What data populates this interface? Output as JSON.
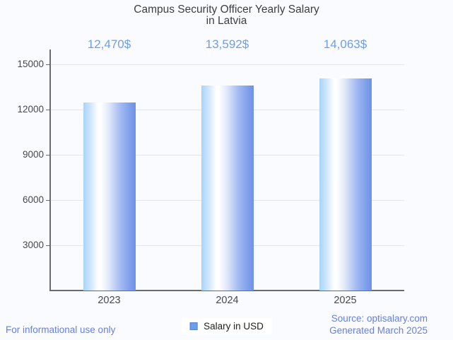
{
  "title": {
    "line1": "Campus Security Officer Yearly Salary",
    "line2": "in Latvia"
  },
  "legend": {
    "label": "Salary in USD",
    "swatch_color": "#6d9eeb"
  },
  "footer": {
    "left": "For informational use only",
    "source": "Source: optisalary.com",
    "generated": "Generated March 2025"
  },
  "colors": {
    "background": "#fafbfe",
    "value_label_blue": "#6d9eeb",
    "footer_blue": "#6680de",
    "axis": "#6b6b6b",
    "gridline": "#e3e5e9",
    "bar_left": "#a8d4fa",
    "bar_mid": "#ffffff",
    "bar_right": "#6e91e7"
  },
  "chart_data": {
    "type": "bar",
    "title": "Campus Security Officer Yearly Salary in Latvia",
    "categories": [
      "2023",
      "2024",
      "2025"
    ],
    "series": [
      {
        "name": "Salary in USD",
        "values": [
          12470,
          13592,
          14063
        ]
      }
    ],
    "value_labels": [
      "12,470$",
      "13,592$",
      "14,063$"
    ],
    "xlabel": "",
    "ylabel": "",
    "yticks": [
      3000,
      6000,
      9000,
      12000,
      15000
    ],
    "ylim": [
      0,
      16000
    ],
    "grid": true,
    "legend_position": "bottom"
  }
}
